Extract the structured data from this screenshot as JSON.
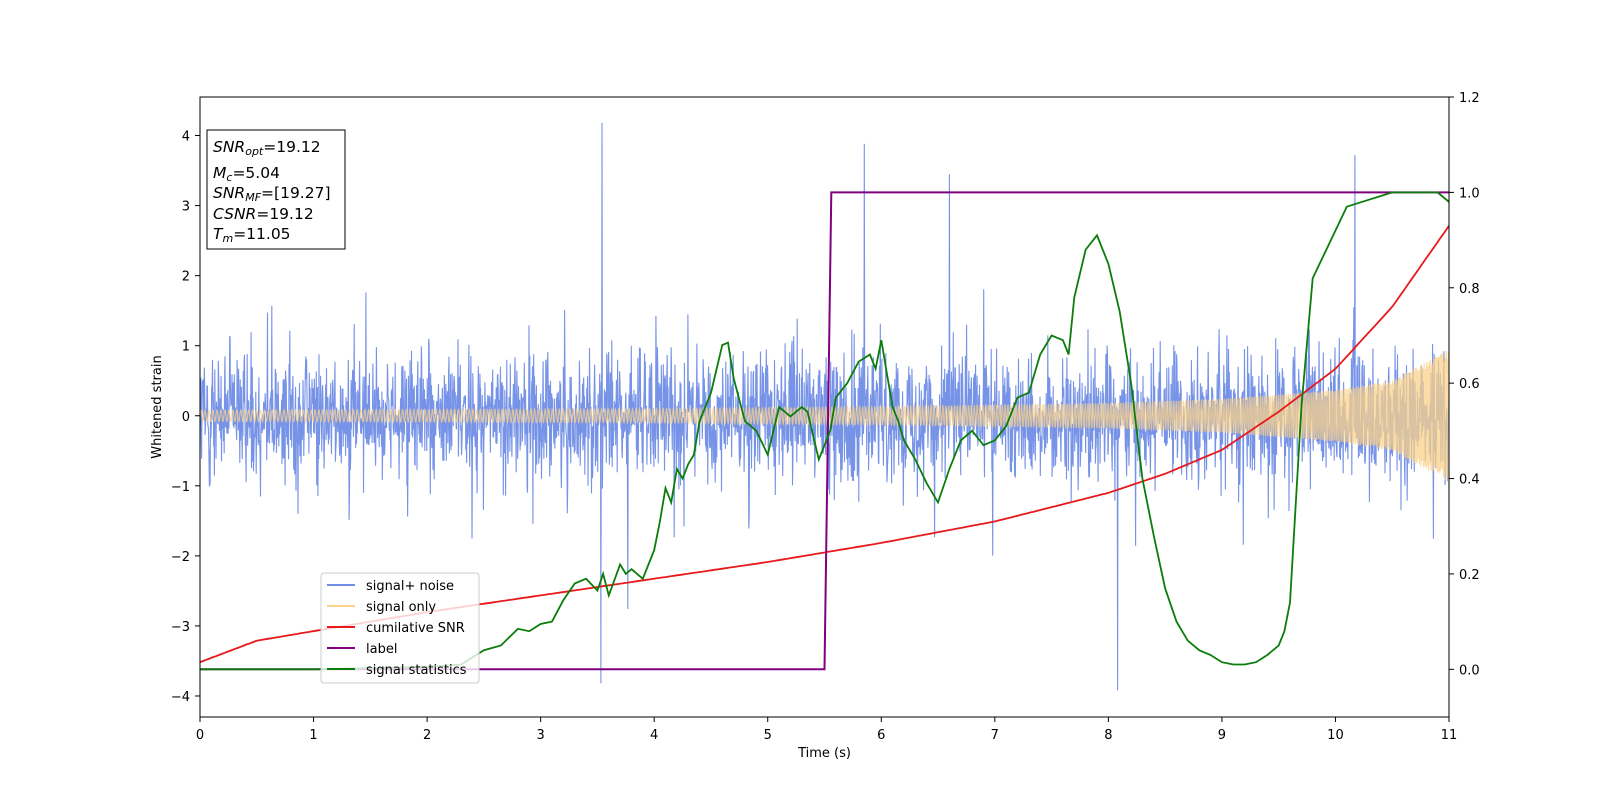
{
  "chart_data": {
    "type": "line",
    "xlabel": "Time (s)",
    "ylabel": "Whitened strain",
    "xlim": [
      0,
      11
    ],
    "ylim": [
      -4.3,
      4.55
    ],
    "y2lim": [
      -0.1,
      1.2
    ],
    "xticks": [
      "0",
      "1",
      "2",
      "3",
      "4",
      "5",
      "6",
      "7",
      "8",
      "9",
      "10",
      "11"
    ],
    "yticks": [
      "−4",
      "−3",
      "−2",
      "−1",
      "0",
      "1",
      "2",
      "3",
      "4"
    ],
    "y2ticks": [
      "0.0",
      "0.2",
      "0.4",
      "0.6",
      "0.8",
      "1.0",
      "1.2"
    ],
    "grid": false,
    "legend_position": "lower-left",
    "legend": [
      "signal+ noise",
      "signal only",
      "cumilative SNR",
      "label",
      "signal statistics"
    ],
    "annotation": {
      "snr_opt": {
        "base": "SNR",
        "sub": "opt",
        "value": "=19.12"
      },
      "mc": {
        "base": "M",
        "sub": "c",
        "value": "=5.04"
      },
      "snr_mf": {
        "base": "SNR",
        "sub": "MF",
        "value": "=[19.27]"
      },
      "csnr": {
        "base": "CSNR",
        "sub": "",
        "value": "=19.12"
      },
      "tm": {
        "base": "T",
        "sub": "m",
        "value": "=11.05"
      }
    },
    "colors": {
      "noise": "#6f8de6",
      "signal": "#fbd18a",
      "cumulative_snr": "#e8191b",
      "label": "#800080",
      "statistics": "#0a7d0a"
    },
    "series": [
      {
        "name": "signal+ noise",
        "axis": "left",
        "description_envelope": {
          "typical_amplitude": 1.8,
          "peaks": [
            [
              3.54,
              4.18
            ],
            [
              3.53,
              -3.82
            ],
            [
              5.85,
              3.88
            ],
            [
              8.08,
              -3.92
            ],
            [
              10.17,
              3.72
            ],
            [
              6.6,
              3.45
            ]
          ]
        }
      },
      {
        "name": "signal only",
        "axis": "left",
        "amplitude": {
          "x": [
            0,
            2,
            4,
            6,
            8,
            9,
            10,
            10.5,
            11
          ],
          "y": [
            0.08,
            0.09,
            0.1,
            0.13,
            0.18,
            0.24,
            0.37,
            0.5,
            0.95
          ]
        }
      },
      {
        "name": "cumilative SNR",
        "axis": "right",
        "x": [
          0,
          0.5,
          1,
          2,
          3,
          4,
          5,
          6,
          7,
          8,
          8.5,
          9,
          9.5,
          10,
          10.5,
          11
        ],
        "y": [
          0.015,
          0.06,
          0.08,
          0.12,
          0.155,
          0.19,
          0.225,
          0.265,
          0.31,
          0.37,
          0.41,
          0.46,
          0.54,
          0.63,
          0.76,
          0.93
        ]
      },
      {
        "name": "label",
        "axis": "right",
        "x": [
          0,
          5.5,
          5.56,
          11
        ],
        "y": [
          0,
          0,
          1,
          1
        ]
      },
      {
        "name": "signal statistics",
        "axis": "right",
        "x": [
          0,
          1,
          2,
          2.3,
          2.5,
          2.65,
          2.8,
          2.9,
          3,
          3.1,
          3.2,
          3.3,
          3.4,
          3.5,
          3.55,
          3.6,
          3.7,
          3.75,
          3.8,
          3.9,
          4,
          4.05,
          4.1,
          4.15,
          4.2,
          4.25,
          4.3,
          4.35,
          4.4,
          4.5,
          4.6,
          4.65,
          4.7,
          4.8,
          4.9,
          5,
          5.05,
          5.1,
          5.2,
          5.3,
          5.35,
          5.45,
          5.5,
          5.55,
          5.6,
          5.7,
          5.8,
          5.9,
          5.95,
          6,
          6.05,
          6.1,
          6.15,
          6.2,
          6.3,
          6.4,
          6.5,
          6.6,
          6.7,
          6.8,
          6.9,
          7,
          7.1,
          7.2,
          7.3,
          7.4,
          7.5,
          7.6,
          7.65,
          7.7,
          7.8,
          7.9,
          8,
          8.1,
          8.2,
          8.3,
          8.4,
          8.5,
          8.6,
          8.7,
          8.8,
          8.9,
          9,
          9.1,
          9.2,
          9.3,
          9.4,
          9.5,
          9.55,
          9.6,
          9.7,
          9.8,
          9.9,
          10,
          10.1,
          10.5,
          10.9,
          11
        ],
        "y": [
          0,
          0,
          0.005,
          0.01,
          0.04,
          0.05,
          0.085,
          0.08,
          0.095,
          0.1,
          0.145,
          0.18,
          0.19,
          0.165,
          0.2,
          0.155,
          0.22,
          0.2,
          0.21,
          0.19,
          0.25,
          0.31,
          0.38,
          0.35,
          0.42,
          0.4,
          0.43,
          0.45,
          0.52,
          0.58,
          0.68,
          0.685,
          0.61,
          0.52,
          0.5,
          0.45,
          0.5,
          0.55,
          0.53,
          0.55,
          0.54,
          0.44,
          0.47,
          0.5,
          0.57,
          0.6,
          0.645,
          0.66,
          0.63,
          0.69,
          0.62,
          0.55,
          0.52,
          0.48,
          0.44,
          0.39,
          0.35,
          0.42,
          0.48,
          0.5,
          0.47,
          0.48,
          0.51,
          0.57,
          0.58,
          0.66,
          0.7,
          0.69,
          0.66,
          0.78,
          0.88,
          0.91,
          0.85,
          0.75,
          0.6,
          0.4,
          0.28,
          0.17,
          0.1,
          0.06,
          0.04,
          0.03,
          0.015,
          0.01,
          0.01,
          0.015,
          0.03,
          0.05,
          0.08,
          0.14,
          0.55,
          0.82,
          0.87,
          0.92,
          0.97,
          1.0,
          1.0,
          0.98
        ]
      }
    ]
  }
}
